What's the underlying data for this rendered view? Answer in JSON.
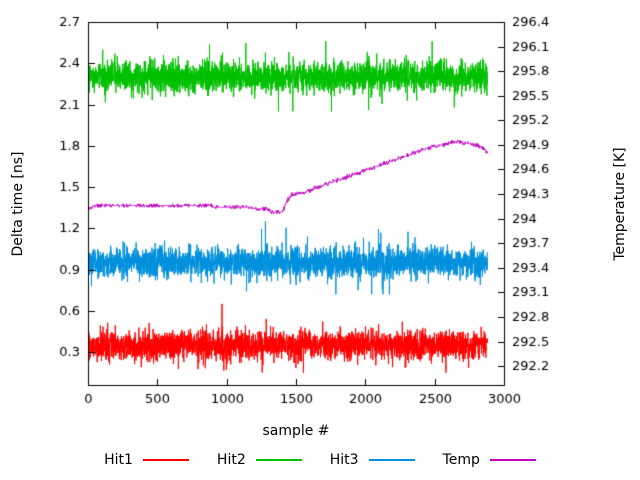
{
  "chart_data": {
    "type": "line",
    "title": "",
    "xlabel": "sample #",
    "ylabel_left": "Delta time [ns]",
    "ylabel_right": "Temperature [K]",
    "xlim": [
      0,
      3000
    ],
    "ylim_left": [
      0.06,
      2.7
    ],
    "ylim_right": [
      291.97,
      296.4
    ],
    "x_ticks": [
      "0",
      "500",
      "1000",
      "1500",
      "2000",
      "2500",
      "3000"
    ],
    "y_ticks_left": [
      "0.3",
      "0.6",
      "0.9",
      "1.2",
      "1.5",
      "1.8",
      "2.1",
      "2.4",
      "2.7"
    ],
    "y_ticks_right": [
      "292.2",
      "292.5",
      "292.8",
      "293.1",
      "293.4",
      "293.7",
      "294",
      "294.3",
      "294.6",
      "294.9",
      "295.2",
      "295.5",
      "295.8",
      "296.1",
      "296.4"
    ],
    "grid": false,
    "legend_position": "bottom",
    "n_samples": 2880,
    "x_data_max": 2880,
    "series": [
      {
        "name": "Hit1",
        "axis": "left",
        "type": "noise",
        "color": "#ff0000",
        "seed": 101,
        "mean": 0.35,
        "std": 0.052,
        "spike_prob": 0.03,
        "spike_scale": 2.2,
        "clip_lo": -0.2,
        "clip_hi": 0.3,
        "approx_range": [
          0.17,
          0.63
        ]
      },
      {
        "name": "Hit2",
        "axis": "left",
        "type": "noise",
        "color": "#00c000",
        "seed": 202,
        "mean": 2.3,
        "std": 0.055,
        "spike_prob": 0.03,
        "spike_scale": 2.2,
        "clip_lo": -0.25,
        "clip_hi": 0.26,
        "approx_range": [
          2.07,
          2.56
        ]
      },
      {
        "name": "Hit3",
        "axis": "left",
        "type": "noise",
        "color": "#0090dd",
        "seed": 303,
        "mean": 0.95,
        "std": 0.052,
        "spike_prob": 0.03,
        "spike_scale": 2.2,
        "clip_lo": -0.23,
        "clip_hi": 0.3,
        "approx_range": [
          0.72,
          1.26
        ]
      },
      {
        "name": "Temp",
        "axis": "right",
        "type": "steps",
        "color": "#c000c0",
        "seed": 404,
        "step": 0.02,
        "jitter_prob": 0.12,
        "keypoints": [
          [
            0,
            294.1
          ],
          [
            40,
            294.16
          ],
          [
            300,
            294.15
          ],
          [
            700,
            294.16
          ],
          [
            1100,
            294.14
          ],
          [
            1280,
            294.12
          ],
          [
            1340,
            294.07
          ],
          [
            1400,
            294.08
          ],
          [
            1430,
            294.2
          ],
          [
            1470,
            294.3
          ],
          [
            1560,
            294.32
          ],
          [
            1650,
            294.38
          ],
          [
            1750,
            294.44
          ],
          [
            1850,
            294.5
          ],
          [
            1950,
            294.56
          ],
          [
            2050,
            294.62
          ],
          [
            2150,
            294.68
          ],
          [
            2250,
            294.74
          ],
          [
            2350,
            294.8
          ],
          [
            2450,
            294.86
          ],
          [
            2550,
            294.9
          ],
          [
            2620,
            294.93
          ],
          [
            2700,
            294.93
          ],
          [
            2760,
            294.91
          ],
          [
            2820,
            294.89
          ],
          [
            2870,
            294.83
          ]
        ]
      }
    ]
  }
}
